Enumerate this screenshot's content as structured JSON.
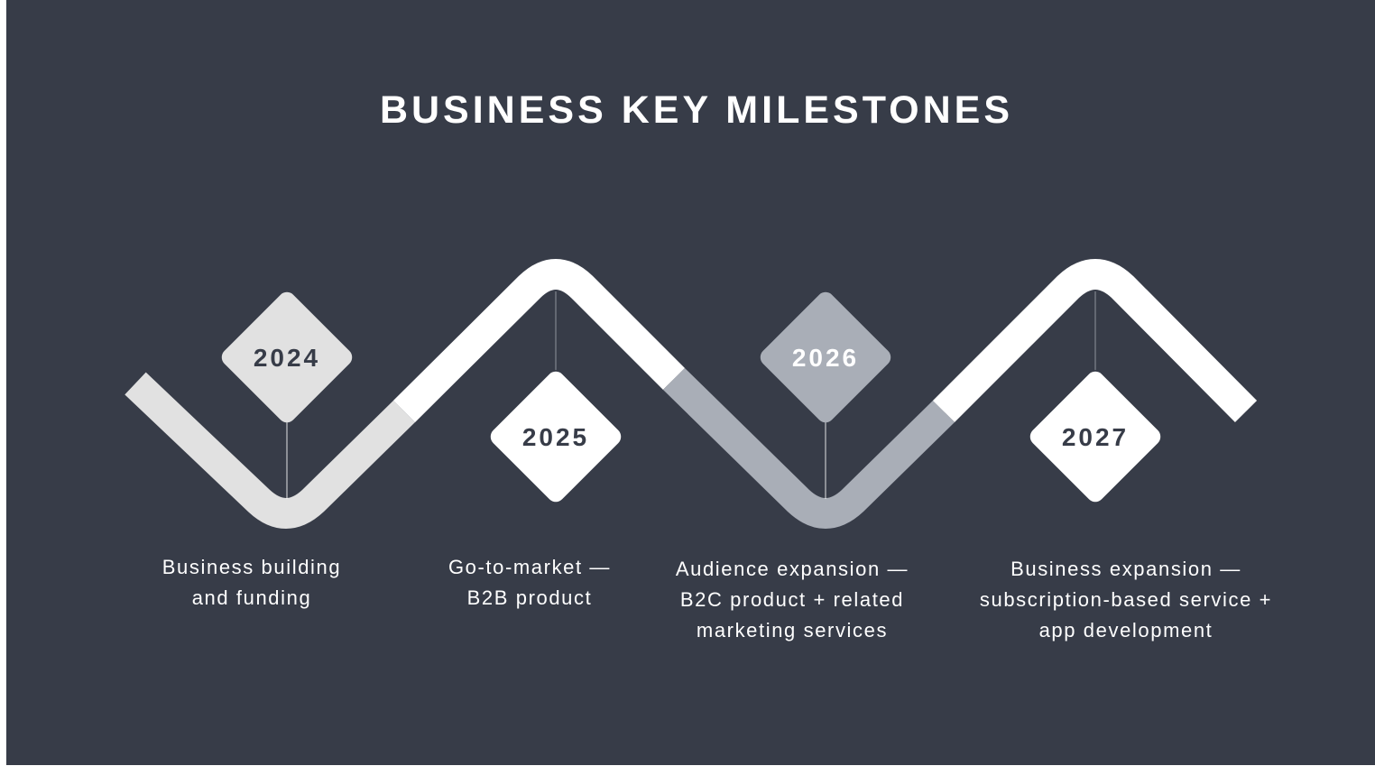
{
  "title": "BUSINESS KEY MILESTONES",
  "colors": {
    "background": "#373c48",
    "segment_light": "#e1e1e1",
    "segment_white": "#ffffff",
    "segment_gray": "#a9aeb7",
    "text_dark": "#373c48"
  },
  "milestones": [
    {
      "year": "2024",
      "description_lines": [
        "Business building",
        "and funding"
      ]
    },
    {
      "year": "2025",
      "description_lines": [
        "Go-to-market —",
        "B2B product"
      ]
    },
    {
      "year": "2026",
      "description_lines": [
        "Audience expansion —",
        "B2C product + related",
        "marketing services"
      ]
    },
    {
      "year": "2027",
      "description_lines": [
        "Business expansion —",
        "subscription-based service +",
        "app development"
      ]
    }
  ]
}
